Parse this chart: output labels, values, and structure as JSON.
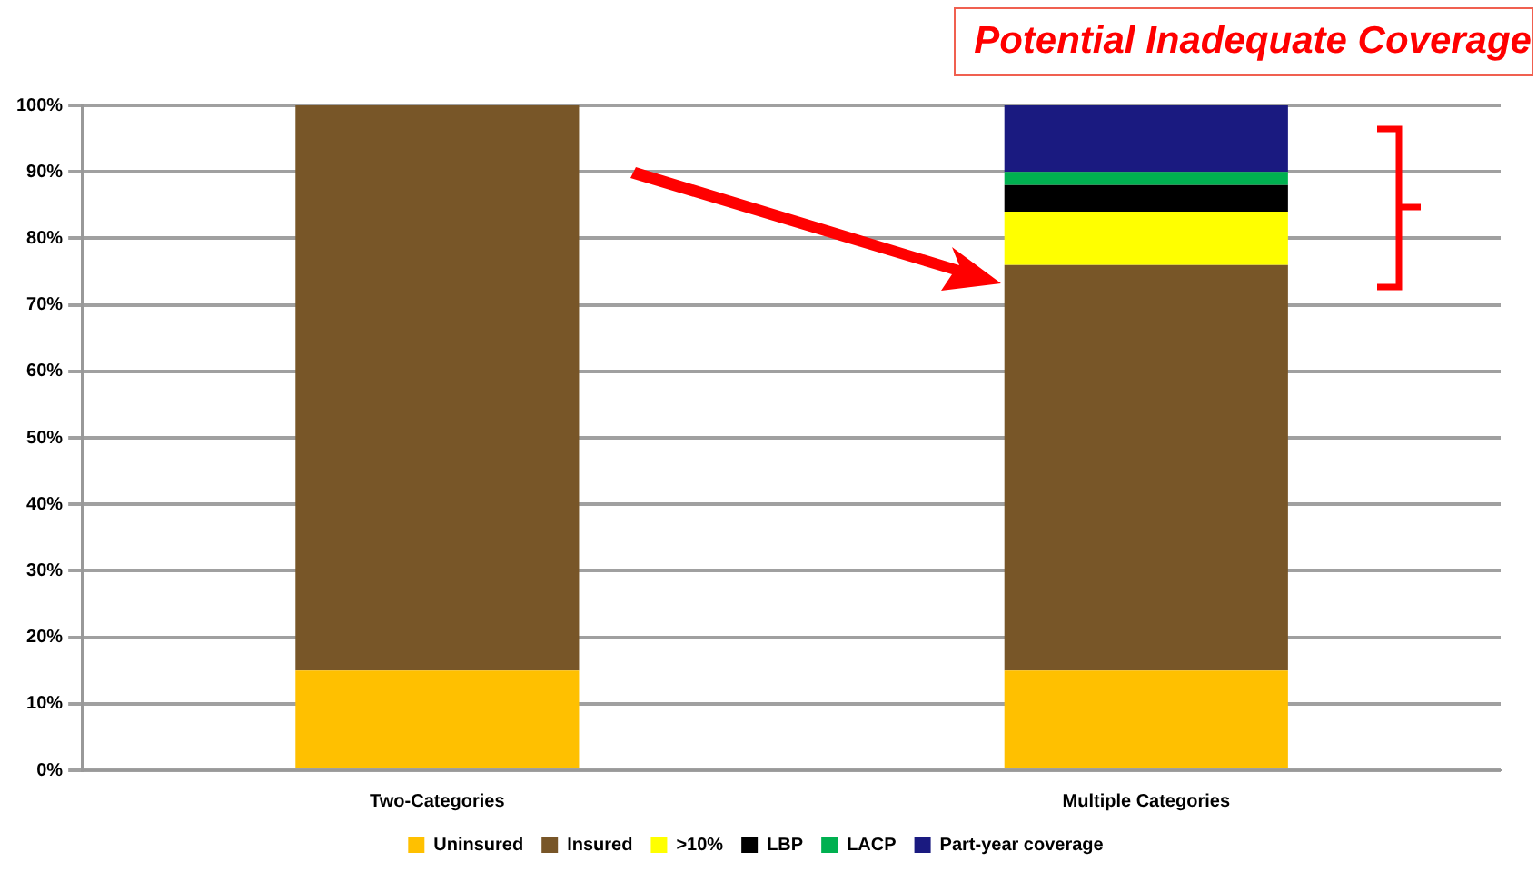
{
  "chart_data": {
    "type": "bar",
    "title": "Potential Inadequate Coverage",
    "stacked": true,
    "categories": [
      "Two-Categories",
      "Multiple Categories"
    ],
    "series": [
      {
        "name": "Uninsured",
        "color": "#ffc000",
        "values": [
          15,
          15
        ]
      },
      {
        "name": "Insured",
        "color": "#785628",
        "values": [
          85,
          61
        ]
      },
      {
        "name": ">10%",
        "color": "#ffff00",
        "values": [
          0,
          8
        ]
      },
      {
        "name": "LBP",
        "color": "#000000",
        "values": [
          0,
          4
        ]
      },
      {
        "name": "LACP",
        "color": "#00b050",
        "values": [
          0,
          2
        ]
      },
      {
        "name": "Part-year coverage",
        "color": "#1a1a80",
        "values": [
          0,
          10
        ]
      }
    ],
    "ylim": [
      0,
      100
    ],
    "yticks": [
      {
        "value": 0,
        "label": "0%"
      },
      {
        "value": 10,
        "label": "10%"
      },
      {
        "value": 20,
        "label": "20%"
      },
      {
        "value": 30,
        "label": "30%"
      },
      {
        "value": 40,
        "label": "40%"
      },
      {
        "value": 50,
        "label": "50%"
      },
      {
        "value": 60,
        "label": "60%"
      },
      {
        "value": 70,
        "label": "70%"
      },
      {
        "value": 80,
        "label": "80%"
      },
      {
        "value": 90,
        "label": "90%"
      },
      {
        "value": 100,
        "label": "100%"
      }
    ],
    "grid": "y",
    "legend": "bottom"
  }
}
